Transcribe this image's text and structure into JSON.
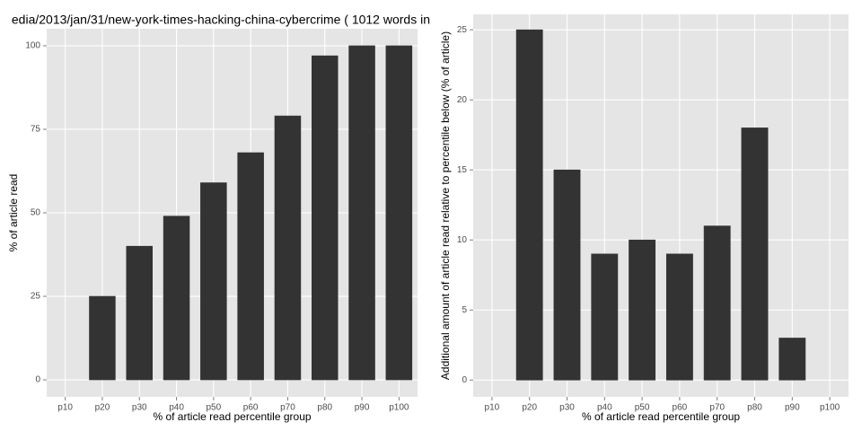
{
  "chart_data": [
    {
      "type": "bar",
      "title": "edia/2013/jan/31/new-york-times-hacking-china-cybercrime ( 1012 words in",
      "x_label": "% of article read percentile group",
      "y_label": "% of article read",
      "categories": [
        "p10",
        "p20",
        "p30",
        "p40",
        "p50",
        "p60",
        "p70",
        "p80",
        "p90",
        "p100"
      ],
      "values": [
        0,
        25,
        40,
        49,
        59,
        68,
        79,
        97,
        100,
        100
      ],
      "color": "#333333",
      "ylim": [
        -5.1,
        105.1
      ],
      "yticks": [
        0,
        25,
        50,
        75,
        100
      ],
      "grid": true
    },
    {
      "type": "bar",
      "x_label": "% of article read percentile group",
      "y_label": "Additional amount of article read relative to percentile below (% of article)",
      "categories": [
        "p10",
        "p20",
        "p30",
        "p40",
        "p50",
        "p60",
        "p70",
        "p80",
        "p90",
        "p100"
      ],
      "values": [
        0,
        25,
        15,
        9,
        10,
        9,
        11,
        18,
        3,
        0
      ],
      "color": "#333333",
      "ylim": [
        -1.2,
        26.1
      ],
      "yticks": [
        0,
        5,
        10,
        15,
        20,
        25
      ],
      "grid": true
    }
  ]
}
